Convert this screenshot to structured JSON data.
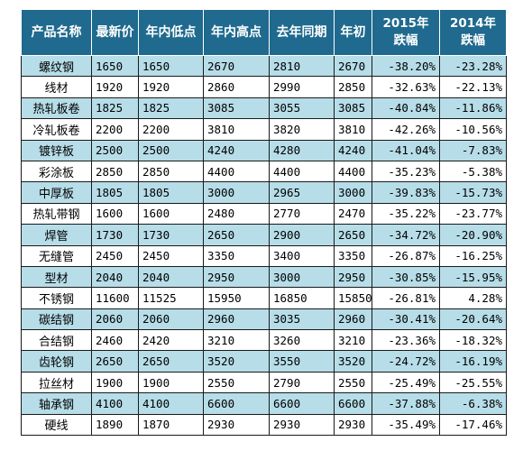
{
  "headers": {
    "name": "产品名称",
    "latest": "最新价",
    "low": "年内低点",
    "high": "年内高点",
    "last_year": "去年同期",
    "start": "年初",
    "drop2015_year": "2015年",
    "drop2015_label": "跌幅",
    "drop2014_year": "2014年",
    "drop2014_label": "跌幅"
  },
  "rows": [
    {
      "name": "螺纹钢",
      "latest": "1650",
      "low": "1650",
      "high": "2670",
      "last_year": "2810",
      "start": "2670",
      "drop2015": "-38.20%",
      "drop2014": "-23.28%"
    },
    {
      "name": "线材",
      "latest": "1920",
      "low": "1920",
      "high": "2860",
      "last_year": "2990",
      "start": "2850",
      "drop2015": "-32.63%",
      "drop2014": "-22.13%"
    },
    {
      "name": "热轧板卷",
      "latest": "1825",
      "low": "1825",
      "high": "3085",
      "last_year": "3055",
      "start": "3085",
      "drop2015": "-40.84%",
      "drop2014": "-11.86%"
    },
    {
      "name": "冷轧板卷",
      "latest": "2200",
      "low": "2200",
      "high": "3810",
      "last_year": "3820",
      "start": "3810",
      "drop2015": "-42.26%",
      "drop2014": "-10.56%"
    },
    {
      "name": "镀锌板",
      "latest": "2500",
      "low": "2500",
      "high": "4240",
      "last_year": "4280",
      "start": "4240",
      "drop2015": "-41.04%",
      "drop2014": "-7.83%"
    },
    {
      "name": "彩涂板",
      "latest": "2850",
      "low": "2850",
      "high": "4400",
      "last_year": "4400",
      "start": "4400",
      "drop2015": "-35.23%",
      "drop2014": "-5.38%"
    },
    {
      "name": "中厚板",
      "latest": "1805",
      "low": "1805",
      "high": "3000",
      "last_year": "2965",
      "start": "3000",
      "drop2015": "-39.83%",
      "drop2014": "-15.73%"
    },
    {
      "name": "热轧带钢",
      "latest": "1600",
      "low": "1600",
      "high": "2480",
      "last_year": "2770",
      "start": "2470",
      "drop2015": "-35.22%",
      "drop2014": "-23.77%"
    },
    {
      "name": "焊管",
      "latest": "1730",
      "low": "1730",
      "high": "2650",
      "last_year": "2900",
      "start": "2650",
      "drop2015": "-34.72%",
      "drop2014": "-20.90%"
    },
    {
      "name": "无缝管",
      "latest": "2450",
      "low": "2450",
      "high": "3350",
      "last_year": "3400",
      "start": "3350",
      "drop2015": "-26.87%",
      "drop2014": "-16.25%"
    },
    {
      "name": "型材",
      "latest": "2040",
      "low": "2040",
      "high": "2950",
      "last_year": "3000",
      "start": "2950",
      "drop2015": "-30.85%",
      "drop2014": "-15.95%"
    },
    {
      "name": "不锈钢",
      "latest": "11600",
      "low": "11525",
      "high": "15950",
      "last_year": "16850",
      "start": "15850",
      "drop2015": "-26.81%",
      "drop2014": "4.28%"
    },
    {
      "name": "碳结钢",
      "latest": "2060",
      "low": "2060",
      "high": "2960",
      "last_year": "3035",
      "start": "2960",
      "drop2015": "-30.41%",
      "drop2014": "-20.64%"
    },
    {
      "name": "合结钢",
      "latest": "2460",
      "low": "2420",
      "high": "3210",
      "last_year": "3260",
      "start": "3210",
      "drop2015": "-23.36%",
      "drop2014": "-18.32%"
    },
    {
      "name": "齿轮钢",
      "latest": "2650",
      "low": "2650",
      "high": "3520",
      "last_year": "3550",
      "start": "3520",
      "drop2015": "-24.72%",
      "drop2014": "-16.19%"
    },
    {
      "name": "拉丝材",
      "latest": "1900",
      "low": "1900",
      "high": "2550",
      "last_year": "2790",
      "start": "2550",
      "drop2015": "-25.49%",
      "drop2014": "-25.55%"
    },
    {
      "name": "轴承钢",
      "latest": "4100",
      "low": "4100",
      "high": "6600",
      "last_year": "6600",
      "start": "6600",
      "drop2015": "-37.88%",
      "drop2014": "-6.38%"
    },
    {
      "name": "硬线",
      "latest": "1890",
      "low": "1870",
      "high": "2930",
      "last_year": "2930",
      "start": "2930",
      "drop2015": "-35.49%",
      "drop2014": "-17.46%"
    }
  ]
}
